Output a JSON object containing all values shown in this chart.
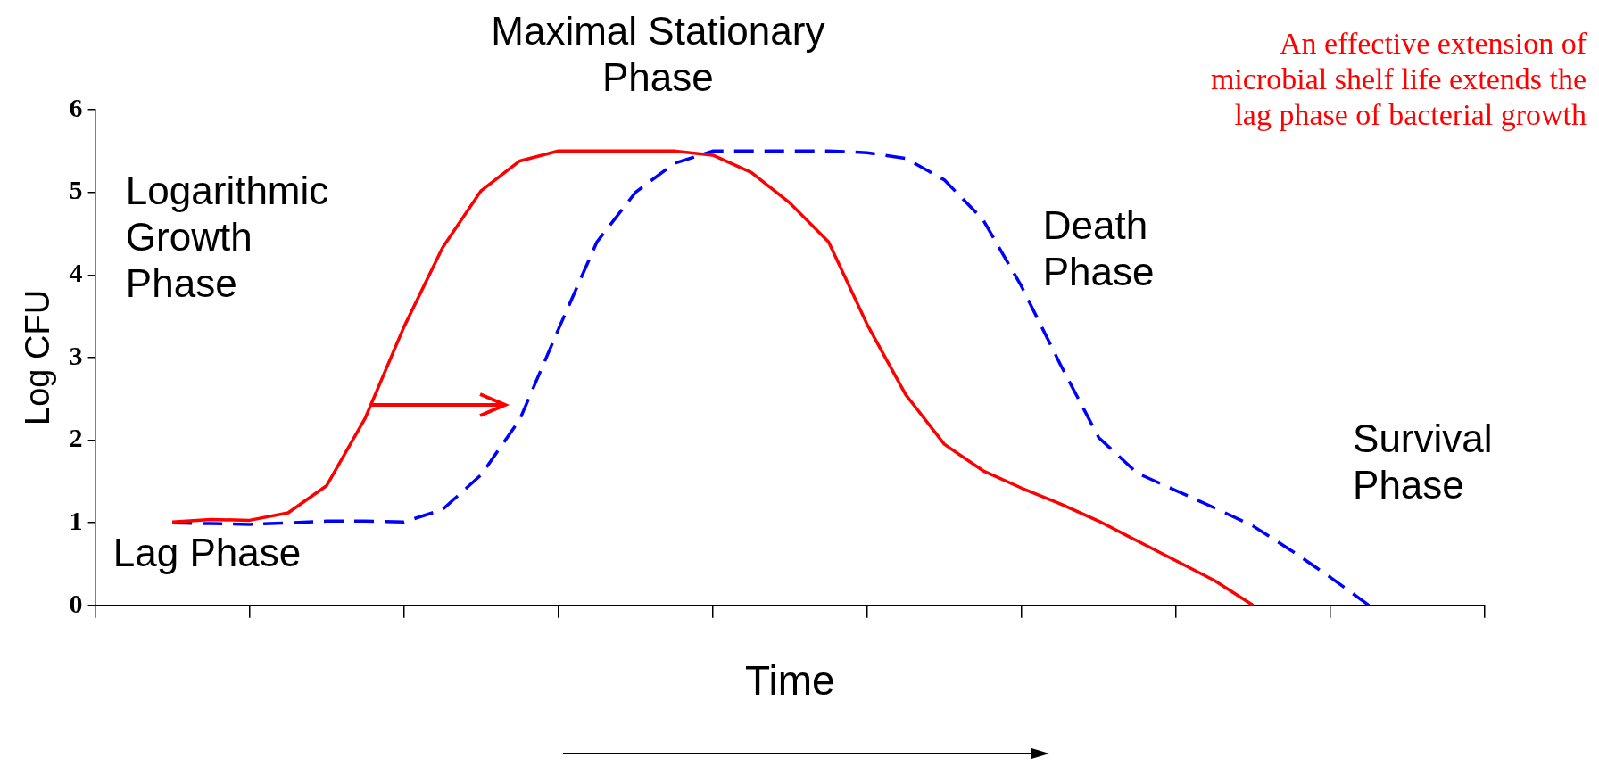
{
  "chart_data": {
    "type": "line",
    "xlabel": "Time",
    "ylabel": "Log CFU",
    "categories": [
      null,
      null,
      null,
      null,
      null,
      null,
      null,
      null,
      null,
      null,
      null,
      null,
      null,
      null,
      null,
      null,
      null,
      null,
      null,
      null,
      null,
      null,
      null,
      null,
      null,
      null,
      null,
      null,
      null,
      null,
      null,
      null,
      null,
      null,
      null,
      null,
      null
    ],
    "ylim": [
      0,
      6
    ],
    "yticks": [
      0,
      1,
      2,
      3,
      4,
      5,
      6
    ],
    "grid": false,
    "legend": false,
    "marker": "none",
    "series": [
      {
        "color": "#ff0000",
        "line_style": "solid",
        "values": [
          null,
          null,
          1.01,
          1.04,
          1.03,
          1.12,
          1.45,
          2.27,
          3.37,
          4.33,
          5.02,
          5.38,
          5.5,
          5.5,
          5.5,
          5.5,
          5.45,
          5.24,
          4.87,
          4.4,
          3.4,
          2.55,
          1.95,
          1.63,
          1.42,
          1.23,
          1.02,
          0.78,
          0.54,
          0.3,
          0,
          null,
          null,
          null,
          null,
          null,
          null
        ]
      },
      {
        "color": "#0000ff",
        "line_style": "dashed",
        "values": [
          null,
          null,
          1.0,
          0.99,
          0.98,
          1.0,
          1.02,
          1.02,
          1.01,
          1.16,
          1.58,
          2.25,
          3.34,
          4.4,
          5.0,
          5.35,
          5.5,
          5.5,
          5.5,
          5.5,
          5.48,
          5.41,
          5.15,
          4.67,
          3.86,
          2.92,
          2.03,
          1.6,
          1.39,
          1.18,
          0.96,
          0.66,
          0.34,
          0,
          null,
          null,
          null
        ]
      }
    ],
    "annotations": [
      "Maximal Stationary\nPhase",
      "An effective extension of\nmicrobial shelf life extends the\nlag phase of bacterial growth",
      "Lag Phase",
      "Logarithmic\nGrowth\nPhase",
      "Death\nPhase",
      "Survival\nPhase"
    ]
  }
}
